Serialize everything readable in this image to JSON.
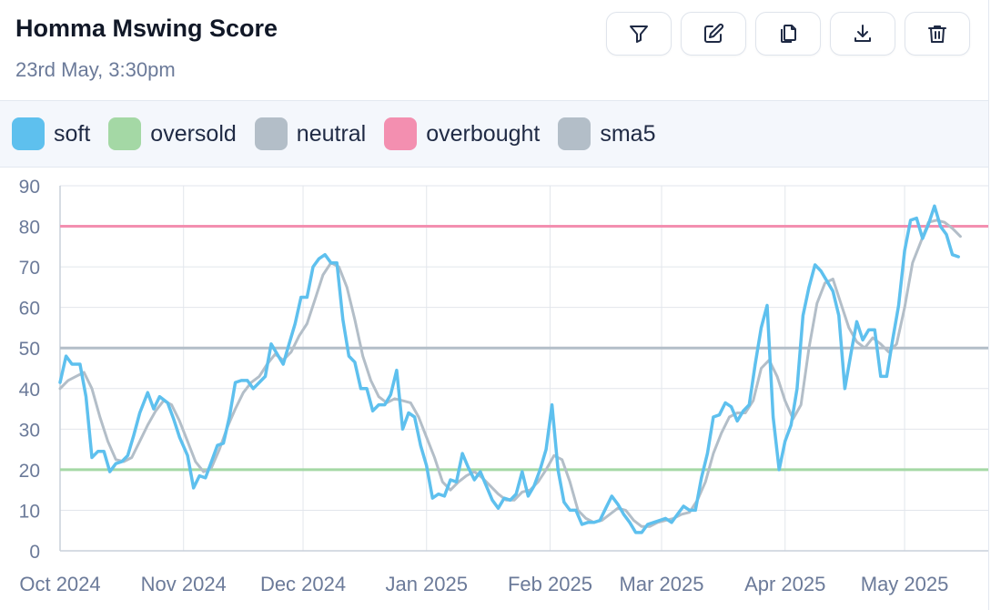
{
  "header": {
    "title": "Homma Mswing Score",
    "subtitle": "23rd May, 3:30pm"
  },
  "toolbar": [
    {
      "name": "filter-button",
      "icon": "filter-icon"
    },
    {
      "name": "edit-button",
      "icon": "pencil-icon"
    },
    {
      "name": "copy-button",
      "icon": "copy-icon"
    },
    {
      "name": "download-button",
      "icon": "download-icon"
    },
    {
      "name": "delete-button",
      "icon": "trash-icon"
    }
  ],
  "legend": [
    {
      "label": "soft",
      "color": "#5ec0ee"
    },
    {
      "label": "oversold",
      "color": "#a4d8a5"
    },
    {
      "label": "neutral",
      "color": "#b3bec8"
    },
    {
      "label": "overbought",
      "color": "#f38fb0"
    },
    {
      "label": "sma5",
      "color": "#b3bec8"
    }
  ],
  "chart_data": {
    "type": "line",
    "ylim": [
      0,
      90
    ],
    "yticks": [
      0,
      10,
      20,
      30,
      40,
      50,
      60,
      70,
      80,
      90
    ],
    "x_range_days": [
      0,
      233
    ],
    "x_ticks": [
      {
        "label": "Oct 2024",
        "day": 0
      },
      {
        "label": "Nov 2024",
        "day": 31
      },
      {
        "label": "Dec 2024",
        "day": 61
      },
      {
        "label": "Jan 2025",
        "day": 92
      },
      {
        "label": "Feb 2025",
        "day": 123
      },
      {
        "label": "Mar 2025",
        "day": 151
      },
      {
        "label": "Apr 2025",
        "day": 182
      },
      {
        "label": "May 2025",
        "day": 212
      }
    ],
    "grid": true,
    "reference_lines": [
      {
        "name": "overbought",
        "value": 80,
        "color": "#f38fb0"
      },
      {
        "name": "neutral",
        "value": 50,
        "color": "#b3bec8"
      },
      {
        "name": "oversold",
        "value": 20,
        "color": "#a4d8a5"
      }
    ],
    "series": [
      {
        "name": "soft",
        "color": "#5ec0ee",
        "points": [
          [
            0,
            41.5
          ],
          [
            1.5,
            48
          ],
          [
            3,
            46
          ],
          [
            5,
            46
          ],
          [
            6.5,
            38
          ],
          [
            8,
            23
          ],
          [
            9.5,
            24.5
          ],
          [
            11,
            24.5
          ],
          [
            12.5,
            19.5
          ],
          [
            14,
            21.5
          ],
          [
            15.5,
            22
          ],
          [
            17,
            23.5
          ],
          [
            18.5,
            28.5
          ],
          [
            20,
            34
          ],
          [
            22,
            39
          ],
          [
            23.5,
            35
          ],
          [
            25,
            38
          ],
          [
            27,
            36.5
          ],
          [
            28.5,
            32.5
          ],
          [
            30,
            28
          ],
          [
            32,
            23.5
          ],
          [
            33.5,
            15.5
          ],
          [
            35,
            18.5
          ],
          [
            36.5,
            18
          ],
          [
            38,
            22
          ],
          [
            39.5,
            26
          ],
          [
            41,
            26.5
          ],
          [
            42.5,
            33
          ],
          [
            44,
            41.5
          ],
          [
            45.5,
            42
          ],
          [
            47,
            42
          ],
          [
            48.5,
            40
          ],
          [
            50,
            41.5
          ],
          [
            51.5,
            43
          ],
          [
            53,
            51
          ],
          [
            54.5,
            48.5
          ],
          [
            56,
            46
          ],
          [
            57.5,
            51
          ],
          [
            59,
            56
          ],
          [
            60.5,
            62.5
          ],
          [
            62,
            62.5
          ],
          [
            63.5,
            70
          ],
          [
            65,
            72
          ],
          [
            66.5,
            73
          ],
          [
            68,
            71
          ],
          [
            69.5,
            71
          ],
          [
            71,
            57
          ],
          [
            72.5,
            48
          ],
          [
            74,
            46.5
          ],
          [
            75.5,
            40
          ],
          [
            77,
            40
          ],
          [
            78.5,
            34.5
          ],
          [
            80,
            36
          ],
          [
            81.5,
            36
          ],
          [
            83,
            38.5
          ],
          [
            84.5,
            44.5
          ],
          [
            86,
            30
          ],
          [
            87.5,
            34
          ],
          [
            89,
            33
          ],
          [
            90.5,
            26
          ],
          [
            92,
            21
          ],
          [
            93.5,
            13
          ],
          [
            95,
            14
          ],
          [
            96.5,
            13.5
          ],
          [
            98,
            17.5
          ],
          [
            99.5,
            17
          ],
          [
            101,
            24
          ],
          [
            102.5,
            20.5
          ],
          [
            104,
            17.5
          ],
          [
            105.5,
            19.5
          ],
          [
            107,
            16
          ],
          [
            108.5,
            12.5
          ],
          [
            110,
            10.5
          ],
          [
            111.5,
            13
          ],
          [
            113,
            12.5
          ],
          [
            114.5,
            14
          ],
          [
            116,
            19.5
          ],
          [
            117.5,
            13.5
          ],
          [
            119,
            16
          ],
          [
            120.5,
            20
          ],
          [
            122,
            25
          ],
          [
            123.5,
            36
          ],
          [
            125,
            20
          ],
          [
            126.5,
            12
          ],
          [
            128,
            10
          ],
          [
            129.5,
            10
          ],
          [
            131,
            6.5
          ],
          [
            132.5,
            7
          ],
          [
            134,
            7
          ],
          [
            135.5,
            7.5
          ],
          [
            137,
            10.5
          ],
          [
            138.5,
            13.5
          ],
          [
            140,
            11.5
          ],
          [
            141.5,
            9
          ],
          [
            143,
            7
          ],
          [
            144.5,
            4.5
          ],
          [
            146,
            4.5
          ],
          [
            147.5,
            6.5
          ],
          [
            149,
            7
          ],
          [
            150.5,
            7.5
          ],
          [
            152,
            8
          ],
          [
            153.5,
            7
          ],
          [
            155,
            9
          ],
          [
            156.5,
            11
          ],
          [
            158,
            10
          ],
          [
            159.5,
            10
          ],
          [
            161,
            18
          ],
          [
            162.5,
            24
          ],
          [
            164,
            33
          ],
          [
            165.5,
            33.5
          ],
          [
            167,
            36.5
          ],
          [
            168.5,
            35.5
          ],
          [
            170,
            32
          ],
          [
            171.5,
            34.5
          ],
          [
            173,
            36
          ],
          [
            174.5,
            46
          ],
          [
            176,
            55
          ],
          [
            177.5,
            60.5
          ],
          [
            179,
            33
          ],
          [
            180.5,
            20
          ],
          [
            182,
            27
          ],
          [
            183.5,
            31
          ],
          [
            185,
            40
          ],
          [
            186.5,
            58
          ],
          [
            188,
            65
          ],
          [
            189.5,
            70.5
          ],
          [
            191,
            69
          ],
          [
            192.5,
            66.5
          ],
          [
            194,
            64
          ],
          [
            195.5,
            58
          ],
          [
            197,
            40
          ],
          [
            198.5,
            48.5
          ],
          [
            200,
            56.5
          ],
          [
            201.5,
            52
          ],
          [
            203,
            54.5
          ],
          [
            204.5,
            54.5
          ],
          [
            206,
            43
          ],
          [
            207.5,
            43
          ],
          [
            209,
            52
          ],
          [
            210.5,
            60.5
          ],
          [
            212,
            74
          ],
          [
            213.5,
            81.5
          ],
          [
            215,
            82
          ],
          [
            216.5,
            77
          ],
          [
            218,
            80.5
          ],
          [
            219.5,
            85
          ],
          [
            221,
            80
          ],
          [
            222.5,
            78
          ],
          [
            224,
            73
          ],
          [
            225.5,
            72.5
          ]
        ]
      },
      {
        "name": "sma5",
        "color": "#b3bec8",
        "points": [
          [
            0,
            40
          ],
          [
            2,
            42
          ],
          [
            4,
            43
          ],
          [
            6,
            44
          ],
          [
            8,
            40
          ],
          [
            10,
            33
          ],
          [
            12,
            27
          ],
          [
            14,
            22.5
          ],
          [
            16,
            22
          ],
          [
            18,
            23
          ],
          [
            20,
            27
          ],
          [
            22,
            31
          ],
          [
            24,
            34.5
          ],
          [
            26,
            37
          ],
          [
            28,
            36
          ],
          [
            30,
            32
          ],
          [
            32,
            27
          ],
          [
            34,
            22
          ],
          [
            36,
            19.5
          ],
          [
            38,
            20.5
          ],
          [
            40,
            25
          ],
          [
            42,
            30.5
          ],
          [
            44,
            35
          ],
          [
            46,
            39
          ],
          [
            48,
            41.5
          ],
          [
            50,
            43
          ],
          [
            52,
            46
          ],
          [
            54,
            48.5
          ],
          [
            56,
            47
          ],
          [
            58,
            49
          ],
          [
            60,
            53
          ],
          [
            62,
            56
          ],
          [
            64,
            62
          ],
          [
            66,
            68
          ],
          [
            68,
            71
          ],
          [
            70,
            70
          ],
          [
            72,
            65
          ],
          [
            74,
            57
          ],
          [
            76,
            48
          ],
          [
            78,
            42
          ],
          [
            80,
            38
          ],
          [
            82,
            36.5
          ],
          [
            84,
            37.5
          ],
          [
            86,
            37
          ],
          [
            88,
            36.5
          ],
          [
            90,
            33
          ],
          [
            92,
            28
          ],
          [
            94,
            23
          ],
          [
            96,
            17
          ],
          [
            98,
            15
          ],
          [
            100,
            17
          ],
          [
            102,
            18.5
          ],
          [
            104,
            19.5
          ],
          [
            106,
            18
          ],
          [
            108,
            16
          ],
          [
            110,
            14
          ],
          [
            112,
            12.5
          ],
          [
            114,
            12.5
          ],
          [
            116,
            14.5
          ],
          [
            118,
            15
          ],
          [
            120,
            17
          ],
          [
            122,
            20
          ],
          [
            124,
            23.5
          ],
          [
            126,
            22.5
          ],
          [
            128,
            17
          ],
          [
            130,
            10
          ],
          [
            132,
            8
          ],
          [
            134,
            7
          ],
          [
            136,
            7.5
          ],
          [
            138,
            9
          ],
          [
            140,
            10.5
          ],
          [
            142,
            10
          ],
          [
            144,
            7.5
          ],
          [
            146,
            6
          ],
          [
            148,
            6
          ],
          [
            150,
            7
          ],
          [
            152,
            7.5
          ],
          [
            154,
            8
          ],
          [
            156,
            9
          ],
          [
            158,
            9.5
          ],
          [
            160,
            12.5
          ],
          [
            162,
            17
          ],
          [
            164,
            24
          ],
          [
            166,
            29
          ],
          [
            168,
            33
          ],
          [
            170,
            34
          ],
          [
            172,
            34
          ],
          [
            174,
            37
          ],
          [
            176,
            45
          ],
          [
            178,
            47
          ],
          [
            180,
            43
          ],
          [
            182,
            37
          ],
          [
            184,
            32.5
          ],
          [
            186,
            36
          ],
          [
            188,
            50
          ],
          [
            190,
            61
          ],
          [
            192,
            66
          ],
          [
            194,
            67
          ],
          [
            196,
            61
          ],
          [
            198,
            55
          ],
          [
            200,
            51.5
          ],
          [
            202,
            50
          ],
          [
            204,
            52.5
          ],
          [
            206,
            51
          ],
          [
            208,
            49
          ],
          [
            210,
            51
          ],
          [
            212,
            60
          ],
          [
            214,
            71
          ],
          [
            216,
            76
          ],
          [
            218,
            81
          ],
          [
            220,
            81.5
          ],
          [
            222,
            81
          ],
          [
            224,
            79.5
          ],
          [
            226,
            77.5
          ]
        ]
      }
    ]
  }
}
